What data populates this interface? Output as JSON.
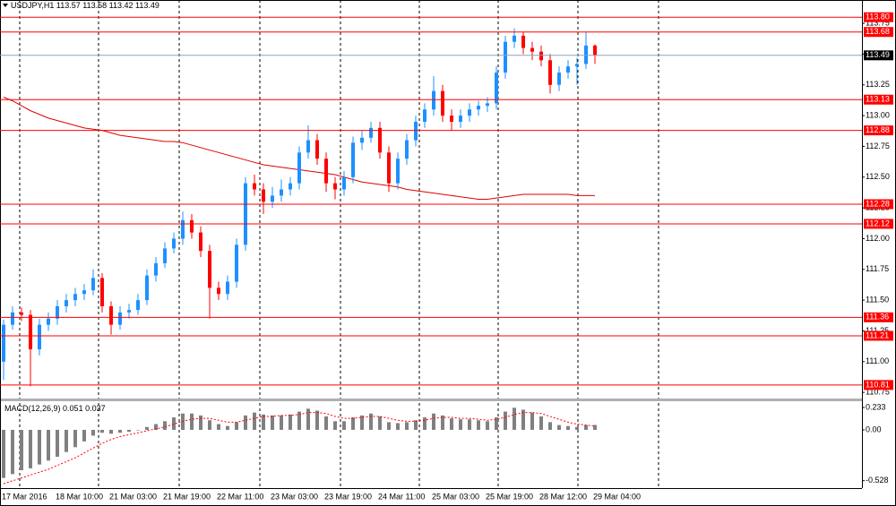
{
  "chart_data": [
    {
      "type": "candlestick",
      "title": "USDJPY,H1",
      "categories": [
        "17 Mar 2016",
        null,
        null,
        null,
        null,
        null,
        "18 Mar 10:00",
        null,
        null,
        null,
        null,
        null,
        "21 Mar 03:00",
        null,
        null,
        null,
        null,
        null,
        "21 Mar 19:00",
        null,
        null,
        null,
        null,
        null,
        "22 Mar 11:00",
        null,
        null,
        null,
        null,
        null,
        "23 Mar 03:00",
        null,
        null,
        null,
        null,
        null,
        "23 Mar 19:00",
        null,
        null,
        null,
        null,
        null,
        "24 Mar 11:00",
        null,
        null,
        null,
        null,
        null,
        "25 Mar 03:00",
        null,
        null,
        null,
        null,
        null,
        "25 Mar 19:00",
        null,
        null,
        null,
        null,
        null,
        "28 Mar 12:00",
        null,
        null,
        null,
        null,
        null,
        "29 Mar 04:00"
      ],
      "open": [
        111.0,
        111.3,
        111.4,
        111.38,
        111.1,
        111.3,
        111.35,
        111.45,
        111.5,
        111.55,
        111.58,
        111.68,
        111.45,
        111.3,
        111.4,
        111.42,
        111.5,
        111.7,
        111.8,
        111.92,
        112.0,
        112.15,
        112.05,
        111.9,
        111.6,
        111.55,
        111.65,
        111.95,
        112.45,
        112.4,
        112.3,
        112.35,
        112.4,
        112.45,
        112.7,
        112.8,
        112.65,
        112.45,
        112.4,
        112.5,
        112.78,
        112.82,
        112.9,
        112.7,
        112.45,
        112.65,
        112.8,
        112.95,
        113.05,
        113.2,
        113.0,
        112.95,
        113.0,
        113.05,
        113.08,
        113.1,
        113.35,
        113.6,
        113.65,
        113.55,
        113.52,
        113.45,
        113.25,
        113.35,
        113.4,
        113.42,
        113.57
      ],
      "high": [
        111.34,
        111.45,
        111.44,
        111.42,
        111.35,
        111.4,
        111.5,
        111.55,
        111.6,
        111.63,
        111.75,
        111.72,
        111.49,
        111.45,
        111.47,
        111.55,
        111.75,
        111.85,
        111.97,
        112.05,
        112.22,
        112.2,
        112.1,
        111.95,
        111.65,
        111.7,
        112.0,
        112.5,
        112.52,
        112.45,
        112.42,
        112.48,
        112.5,
        112.75,
        112.92,
        112.85,
        112.7,
        112.5,
        112.55,
        112.83,
        112.88,
        112.95,
        112.95,
        112.75,
        112.7,
        112.85,
        113.0,
        113.1,
        113.32,
        113.25,
        113.05,
        113.05,
        113.1,
        113.12,
        113.15,
        113.4,
        113.65,
        113.71,
        113.68,
        113.6,
        113.57,
        113.5,
        113.4,
        113.45,
        113.47,
        113.68,
        113.58
      ],
      "low": [
        110.85,
        111.26,
        111.33,
        110.8,
        111.05,
        111.25,
        111.3,
        111.4,
        111.45,
        111.5,
        111.54,
        111.4,
        111.22,
        111.26,
        111.35,
        111.38,
        111.46,
        111.65,
        111.76,
        111.88,
        111.95,
        112.0,
        111.85,
        111.35,
        111.5,
        111.5,
        111.6,
        111.9,
        112.35,
        112.2,
        112.25,
        112.3,
        112.35,
        112.4,
        112.65,
        112.6,
        112.38,
        112.32,
        112.35,
        112.45,
        112.72,
        112.78,
        112.65,
        112.38,
        112.4,
        112.6,
        112.75,
        112.9,
        113.0,
        112.95,
        112.88,
        112.9,
        112.95,
        113.0,
        113.03,
        113.05,
        113.3,
        113.55,
        113.5,
        113.45,
        113.4,
        113.18,
        113.2,
        113.3,
        113.25,
        113.38,
        113.42
      ],
      "close": [
        111.3,
        111.4,
        111.38,
        111.1,
        111.3,
        111.35,
        111.45,
        111.5,
        111.55,
        111.58,
        111.68,
        111.45,
        111.3,
        111.4,
        111.42,
        111.5,
        111.7,
        111.8,
        111.92,
        112.0,
        112.15,
        112.05,
        111.9,
        111.6,
        111.55,
        111.65,
        111.95,
        112.45,
        112.4,
        112.3,
        112.35,
        112.4,
        112.45,
        112.7,
        112.8,
        112.65,
        112.45,
        112.4,
        112.5,
        112.78,
        112.82,
        112.9,
        112.7,
        112.45,
        112.65,
        112.8,
        112.95,
        113.05,
        113.2,
        113.0,
        112.95,
        113.0,
        113.05,
        113.08,
        113.1,
        113.35,
        113.6,
        113.65,
        113.55,
        113.52,
        113.45,
        113.25,
        113.35,
        113.4,
        113.42,
        113.57,
        113.49
      ],
      "up_color": "#1e90ff",
      "down_color": "#ff0000",
      "overlay_values": [
        113.15,
        113.12,
        113.08,
        113.04,
        113.01,
        112.98,
        112.96,
        112.94,
        112.92,
        112.9,
        112.89,
        112.88,
        112.86,
        112.84,
        112.83,
        112.82,
        112.81,
        112.8,
        112.79,
        112.79,
        112.78,
        112.76,
        112.74,
        112.72,
        112.7,
        112.68,
        112.66,
        112.64,
        112.62,
        112.6,
        112.59,
        112.58,
        112.57,
        112.56,
        112.55,
        112.54,
        112.53,
        112.52,
        112.5,
        112.48,
        112.46,
        112.45,
        112.44,
        112.43,
        112.42,
        112.4,
        112.39,
        112.38,
        112.37,
        112.36,
        112.35,
        112.34,
        112.33,
        112.32,
        112.32,
        112.33,
        112.34,
        112.35,
        112.36,
        112.36,
        112.36,
        112.36,
        112.36,
        112.36,
        112.35,
        112.35,
        112.35
      ],
      "overlay_color": "#e00000",
      "levels": [
        {
          "value": 113.8,
          "label": "113.80"
        },
        113.68,
        113.13,
        112.88,
        112.28,
        112.12,
        111.36,
        111.21,
        110.81
      ],
      "level_color": "#ff0000",
      "last_price_color": "#8ea2b8",
      "ylim": [
        110.7,
        113.94
      ],
      "yticks": [
        110.75,
        {
          "value": 111,
          "label": "111.00"
        },
        111.25,
        {
          "value": 111.5,
          "label": "111.50"
        },
        111.75,
        {
          "value": 112,
          "label": "112.00"
        },
        112.25,
        {
          "value": 112.5,
          "label": "112.50"
        },
        112.75,
        {
          "value": 113,
          "label": "113.00"
        },
        113.25,
        {
          "value": 113.5,
          "label": "113.50"
        },
        113.75
      ]
    },
    {
      "type": "macd",
      "title": "MACD(12,26,9)",
      "values": [
        -0.5,
        -0.46,
        -0.42,
        -0.4,
        -0.36,
        -0.32,
        -0.28,
        -0.23,
        -0.18,
        -0.12,
        -0.06,
        -0.03,
        -0.04,
        -0.03,
        -0.02,
        0.0,
        0.03,
        0.06,
        0.09,
        0.13,
        0.17,
        0.17,
        0.15,
        0.1,
        0.06,
        0.04,
        0.08,
        0.15,
        0.18,
        0.16,
        0.15,
        0.15,
        0.16,
        0.19,
        0.22,
        0.2,
        0.14,
        0.09,
        0.09,
        0.13,
        0.15,
        0.17,
        0.14,
        0.08,
        0.07,
        0.08,
        0.1,
        0.13,
        0.17,
        0.15,
        0.12,
        0.11,
        0.11,
        0.1,
        0.09,
        0.13,
        0.19,
        0.23,
        0.21,
        0.18,
        0.14,
        0.08,
        0.05,
        0.04,
        0.03,
        0.05,
        0.051
      ],
      "color": "#808080",
      "signal": [
        -0.56,
        -0.53,
        -0.5,
        -0.47,
        -0.44,
        -0.41,
        -0.37,
        -0.33,
        -0.29,
        -0.24,
        -0.19,
        -0.14,
        -0.1,
        -0.07,
        -0.05,
        -0.03,
        -0.01,
        0.01,
        0.03,
        0.06,
        0.09,
        0.11,
        0.12,
        0.12,
        0.1,
        0.08,
        0.08,
        0.1,
        0.12,
        0.14,
        0.14,
        0.15,
        0.15,
        0.16,
        0.18,
        0.18,
        0.17,
        0.14,
        0.12,
        0.12,
        0.13,
        0.14,
        0.14,
        0.12,
        0.1,
        0.09,
        0.09,
        0.1,
        0.12,
        0.13,
        0.13,
        0.12,
        0.12,
        0.11,
        0.1,
        0.11,
        0.13,
        0.16,
        0.18,
        0.18,
        0.17,
        0.14,
        0.11,
        0.08,
        0.06,
        0.05,
        0.037
      ],
      "signal_color": "#ff0000",
      "ylim": [
        -0.615,
        0.298
      ],
      "yticks": [
        0.233,
        {
          "value": 0,
          "label": "0.00"
        },
        -0.528
      ]
    }
  ]
}
